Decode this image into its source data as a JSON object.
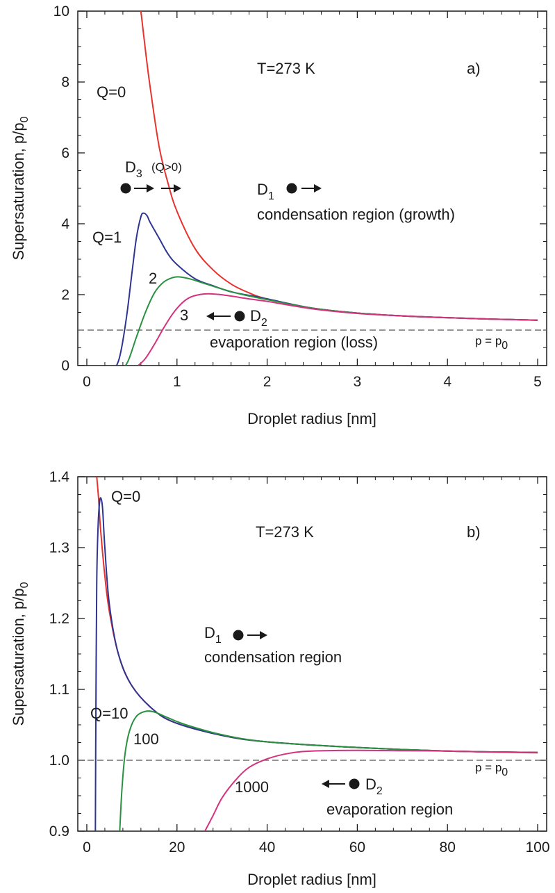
{
  "chart_data": [
    {
      "type": "line",
      "panel_label": "a)",
      "xlabel": "Droplet radius [nm]",
      "ylabel_main": "Supersaturation, p/p",
      "ylabel_sub": "0",
      "xlim": [
        -0.1,
        5.1
      ],
      "ylim": [
        0,
        10
      ],
      "xticks": [
        0,
        1,
        2,
        3,
        4,
        5
      ],
      "yticks": [
        0,
        2,
        4,
        6,
        8,
        10
      ],
      "reference_line": {
        "y": 1,
        "style": "dashed"
      },
      "series": [
        {
          "name": "Q=0",
          "color": "#e8322d",
          "points": [
            [
              0.6,
              10.0
            ],
            [
              0.65,
              8.9
            ],
            [
              0.7,
              7.9
            ],
            [
              0.8,
              6.2
            ],
            [
              0.9,
              5.15
            ],
            [
              1.0,
              4.35
            ],
            [
              1.2,
              3.3
            ],
            [
              1.4,
              2.7
            ],
            [
              1.6,
              2.3
            ],
            [
              1.8,
              2.05
            ],
            [
              2.0,
              1.88
            ],
            [
              2.5,
              1.62
            ],
            [
              3.0,
              1.48
            ],
            [
              3.5,
              1.4
            ],
            [
              4.0,
              1.35
            ],
            [
              4.5,
              1.31
            ],
            [
              5.0,
              1.28
            ]
          ]
        },
        {
          "name": "1",
          "color": "#2e3591",
          "points": [
            [
              0.33,
              0.0
            ],
            [
              0.36,
              0.2
            ],
            [
              0.4,
              0.7
            ],
            [
              0.45,
              1.55
            ],
            [
              0.5,
              2.6
            ],
            [
              0.55,
              3.6
            ],
            [
              0.6,
              4.2
            ],
            [
              0.63,
              4.3
            ],
            [
              0.67,
              4.22
            ],
            [
              0.7,
              4.05
            ],
            [
              0.8,
              3.6
            ],
            [
              0.9,
              3.15
            ],
            [
              1.0,
              2.85
            ],
            [
              1.2,
              2.45
            ],
            [
              1.4,
              2.25
            ],
            [
              1.6,
              2.08
            ],
            [
              1.8,
              1.98
            ],
            [
              2.0,
              1.88
            ],
            [
              2.5,
              1.62
            ],
            [
              3.0,
              1.48
            ],
            [
              3.5,
              1.4
            ],
            [
              4.0,
              1.35
            ],
            [
              4.5,
              1.31
            ],
            [
              5.0,
              1.28
            ]
          ]
        },
        {
          "name": "2",
          "color": "#2a9142",
          "points": [
            [
              0.43,
              0.0
            ],
            [
              0.47,
              0.2
            ],
            [
              0.55,
              0.8
            ],
            [
              0.65,
              1.5
            ],
            [
              0.75,
              2.05
            ],
            [
              0.85,
              2.35
            ],
            [
              0.95,
              2.48
            ],
            [
              1.03,
              2.5
            ],
            [
              1.15,
              2.44
            ],
            [
              1.3,
              2.32
            ],
            [
              1.5,
              2.16
            ],
            [
              1.7,
              2.02
            ],
            [
              2.0,
              1.86
            ],
            [
              2.5,
              1.62
            ],
            [
              3.0,
              1.48
            ],
            [
              3.5,
              1.4
            ],
            [
              4.0,
              1.35
            ],
            [
              4.5,
              1.31
            ],
            [
              5.0,
              1.28
            ]
          ]
        },
        {
          "name": "3",
          "color": "#d4317e",
          "points": [
            [
              0.57,
              0.0
            ],
            [
              0.65,
              0.2
            ],
            [
              0.75,
              0.6
            ],
            [
              0.85,
              1.05
            ],
            [
              0.95,
              1.45
            ],
            [
              1.05,
              1.75
            ],
            [
              1.15,
              1.93
            ],
            [
              1.3,
              2.02
            ],
            [
              1.45,
              2.01
            ],
            [
              1.6,
              1.96
            ],
            [
              1.8,
              1.88
            ],
            [
              2.0,
              1.81
            ],
            [
              2.5,
              1.6
            ],
            [
              3.0,
              1.47
            ],
            [
              3.5,
              1.4
            ],
            [
              4.0,
              1.35
            ],
            [
              4.5,
              1.31
            ],
            [
              5.0,
              1.28
            ]
          ]
        }
      ]
    },
    {
      "type": "line",
      "panel_label": "b)",
      "xlabel": "Droplet radius [nm]",
      "ylabel_main": "Supersaturation, p/p",
      "ylabel_sub": "0",
      "xlim": [
        -2,
        102
      ],
      "ylim": [
        0.9,
        1.4
      ],
      "xticks": [
        0,
        20,
        40,
        60,
        80,
        100
      ],
      "yticks": [
        0.9,
        1.0,
        1.1,
        1.2,
        1.3,
        1.4
      ],
      "reference_line": {
        "y": 1.0,
        "style": "dashed"
      },
      "series": [
        {
          "name": "Q=0",
          "color": "#e8322d",
          "points": [
            [
              2.2,
              1.4
            ],
            [
              2.6,
              1.37
            ],
            [
              3.0,
              1.33
            ],
            [
              4.0,
              1.26
            ],
            [
              5.0,
              1.21
            ],
            [
              7.0,
              1.15
            ],
            [
              10.0,
              1.105
            ],
            [
              15.0,
              1.07
            ],
            [
              20.0,
              1.052
            ],
            [
              30.0,
              1.035
            ],
            [
              40.0,
              1.026
            ],
            [
              60.0,
              1.018
            ],
            [
              80.0,
              1.013
            ],
            [
              100.0,
              1.011
            ]
          ]
        },
        {
          "name": "Q=10",
          "color": "#2e3591",
          "points": [
            [
              1.9,
              0.9
            ],
            [
              2.0,
              1.05
            ],
            [
              2.2,
              1.25
            ],
            [
              2.5,
              1.33
            ],
            [
              2.8,
              1.362
            ],
            [
              3.1,
              1.37
            ],
            [
              3.5,
              1.355
            ],
            [
              4.0,
              1.3
            ],
            [
              5.0,
              1.22
            ],
            [
              7.0,
              1.15
            ],
            [
              10.0,
              1.105
            ],
            [
              15.0,
              1.07
            ],
            [
              20.0,
              1.052
            ],
            [
              30.0,
              1.035
            ],
            [
              40.0,
              1.026
            ],
            [
              60.0,
              1.018
            ],
            [
              80.0,
              1.013
            ],
            [
              100.0,
              1.011
            ]
          ]
        },
        {
          "name": "100",
          "color": "#2a9142",
          "points": [
            [
              7.3,
              0.9
            ],
            [
              7.8,
              0.96
            ],
            [
              8.5,
              1.01
            ],
            [
              9.5,
              1.042
            ],
            [
              11.0,
              1.062
            ],
            [
              13.0,
              1.069
            ],
            [
              15.0,
              1.068
            ],
            [
              18.0,
              1.06
            ],
            [
              22.0,
              1.05
            ],
            [
              30.0,
              1.036
            ],
            [
              40.0,
              1.026
            ],
            [
              60.0,
              1.018
            ],
            [
              80.0,
              1.013
            ],
            [
              100.0,
              1.011
            ]
          ]
        },
        {
          "name": "1000",
          "color": "#d4317e",
          "points": [
            [
              26.2,
              0.9
            ],
            [
              28.0,
              0.922
            ],
            [
              30.0,
              0.947
            ],
            [
              33.0,
              0.972
            ],
            [
              36.0,
              0.99
            ],
            [
              40.0,
              1.002
            ],
            [
              45.0,
              1.01
            ],
            [
              50.0,
              1.013
            ],
            [
              60.0,
              1.014
            ],
            [
              70.0,
              1.0135
            ],
            [
              80.0,
              1.013
            ],
            [
              90.0,
              1.0115
            ],
            [
              100.0,
              1.0105
            ]
          ]
        }
      ]
    }
  ],
  "panel_a": {
    "temperature": "T=273 K",
    "panel_label": "a)",
    "q0_label": "Q=0",
    "q1_label": "Q=1",
    "q2_label": "2",
    "q3_label": "3",
    "d3_letter": "D",
    "d3_sub": "3",
    "d3_note": "(Q>0)",
    "d1_letter": "D",
    "d1_sub": "1",
    "condensation_text": "condensation region (growth)",
    "d2_letter": "D",
    "d2_sub": "2",
    "evaporation_text": "evaporation region (loss)",
    "p_ref_main": "p = p",
    "p_ref_sub": "0"
  },
  "panel_b": {
    "temperature": "T=273 K",
    "panel_label": "b)",
    "q0_label": "Q=0",
    "q10_label": "Q=10",
    "q100_label": "100",
    "q1000_label": "1000",
    "d1_letter": "D",
    "d1_sub": "1",
    "condensation_text": "condensation region",
    "d2_letter": "D",
    "d2_sub": "2",
    "evaporation_text": "evaporation region",
    "p_ref_main": "p = p",
    "p_ref_sub": "0"
  },
  "colors": {
    "q0": "#e8322d",
    "q_small": "#2e3591",
    "q_mid": "#2a9142",
    "q_large": "#d4317e",
    "marker": "#1a1a1a"
  }
}
